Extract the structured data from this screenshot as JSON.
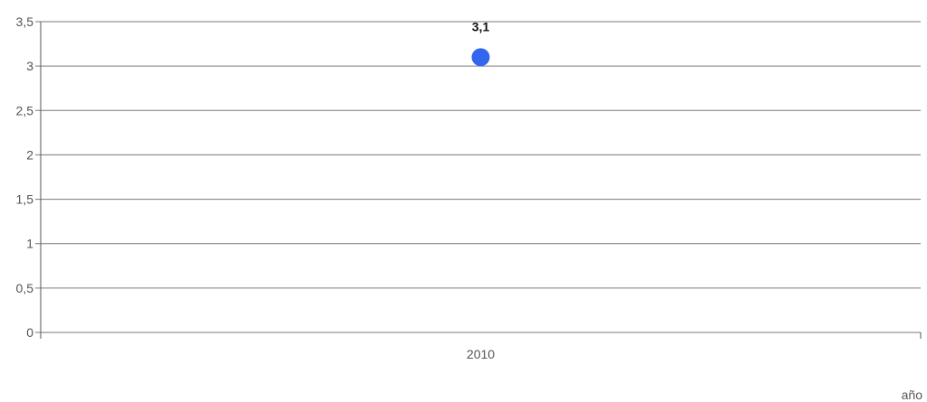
{
  "chart_data": {
    "type": "scatter",
    "categories": [
      "2010"
    ],
    "series": [
      {
        "values": [
          3.1
        ],
        "labels": [
          "3,1"
        ]
      }
    ],
    "y_ticks": [
      0,
      0.5,
      1,
      1.5,
      2,
      2.5,
      3,
      3.5
    ],
    "y_tick_labels": [
      "0",
      "0,5",
      "1",
      "1,5",
      "2",
      "2,5",
      "3",
      "3,5"
    ],
    "ylim": [
      0,
      3.5
    ],
    "xlabel": "año",
    "ylabel": "",
    "grid": true,
    "colors": {
      "point": "#3366ee",
      "grid": "#7a7a7a",
      "axis": "#555555"
    }
  }
}
